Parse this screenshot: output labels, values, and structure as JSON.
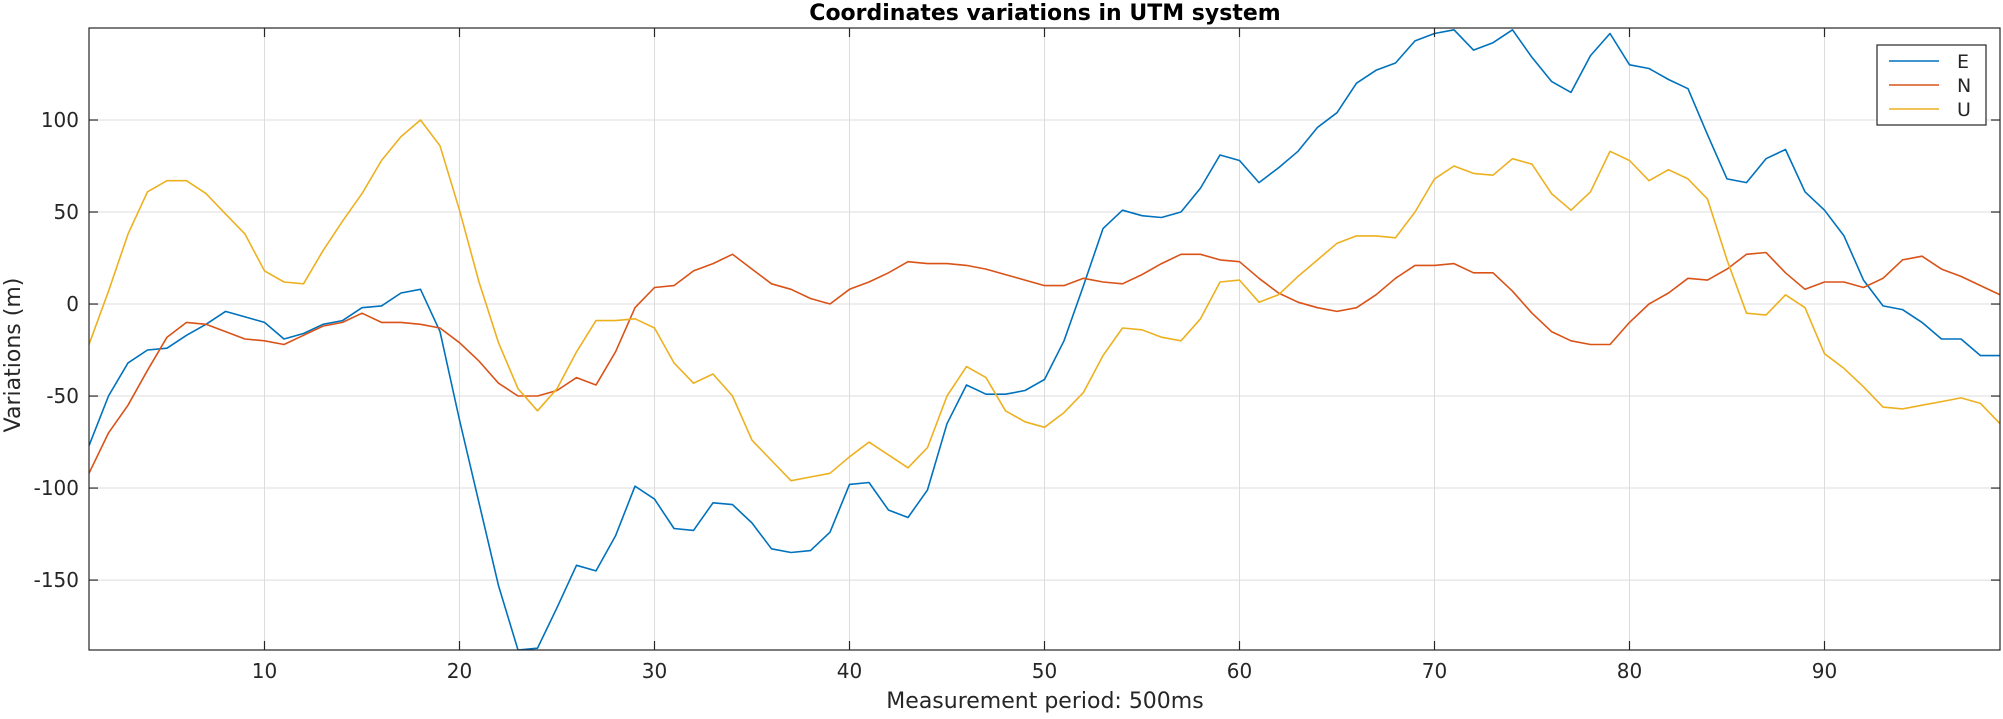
{
  "chart_data": {
    "type": "line",
    "title": "Coordinates variations in UTM system",
    "xlabel": "Measurement period: 500ms",
    "ylabel": "Variations (m)",
    "xlim": [
      1,
      99
    ],
    "ylim": [
      -188,
      150
    ],
    "xticks": [
      10,
      20,
      30,
      40,
      50,
      60,
      70,
      80,
      90
    ],
    "yticks": [
      -150,
      -100,
      -50,
      0,
      50,
      100
    ],
    "grid": true,
    "legend_position": "top-right",
    "x": [
      1,
      2,
      3,
      4,
      5,
      6,
      7,
      8,
      9,
      10,
      11,
      12,
      13,
      14,
      15,
      16,
      17,
      18,
      19,
      20,
      21,
      22,
      23,
      24,
      25,
      26,
      27,
      28,
      29,
      30,
      31,
      32,
      33,
      34,
      35,
      36,
      37,
      38,
      39,
      40,
      41,
      42,
      43,
      44,
      45,
      46,
      47,
      48,
      49,
      50,
      51,
      52,
      53,
      54,
      55,
      56,
      57,
      58,
      59,
      60,
      61,
      62,
      63,
      64,
      65,
      66,
      67,
      68,
      69,
      70,
      71,
      72,
      73,
      74,
      75,
      76,
      77,
      78,
      79,
      80,
      81,
      82,
      83,
      84,
      85,
      86,
      87,
      88,
      89,
      90,
      91,
      92,
      93,
      94,
      95,
      96,
      97,
      98,
      99
    ],
    "series": [
      {
        "name": "E",
        "color": "#0072BD",
        "values": [
          -77,
          -50,
          -32,
          -25,
          -24,
          -17,
          -11,
          -4,
          -7,
          -10,
          -19,
          -16,
          -11,
          -9,
          -2,
          -1,
          6,
          8,
          -15,
          -63,
          -108,
          -153,
          -188,
          -187,
          -165,
          -142,
          -145,
          -126,
          -99,
          -106,
          -122,
          -123,
          -108,
          -109,
          -119,
          -133,
          -135,
          -134,
          -124,
          -98,
          -97,
          -112,
          -116,
          -101,
          -65,
          -44,
          -49,
          -49,
          -47,
          -41,
          -20,
          10,
          41,
          51,
          48,
          47,
          50,
          63,
          81,
          78,
          66,
          74,
          83,
          96,
          104,
          120,
          127,
          131,
          143,
          147,
          149,
          138,
          142,
          149,
          134,
          121,
          115,
          135,
          147,
          130,
          128,
          122,
          117,
          92,
          68,
          66,
          79,
          84,
          61,
          51,
          37,
          13,
          -1,
          -3,
          -10,
          -19,
          -19,
          -28,
          -28
        ]
      },
      {
        "name": "N",
        "color": "#D95319",
        "values": [
          -92,
          -70,
          -55,
          -36,
          -18,
          -10,
          -11,
          -15,
          -19,
          -20,
          -22,
          -17,
          -12,
          -10,
          -5,
          -10,
          -10,
          -11,
          -13,
          -21,
          -31,
          -43,
          -50,
          -50,
          -47,
          -40,
          -44,
          -26,
          -2,
          9,
          10,
          18,
          22,
          27,
          19,
          11,
          8,
          3,
          0,
          8,
          12,
          17,
          23,
          22,
          22,
          21,
          19,
          16,
          13,
          10,
          10,
          14,
          12,
          11,
          16,
          22,
          27,
          27,
          24,
          23,
          14,
          6,
          1,
          -2,
          -4,
          -2,
          5,
          14,
          21,
          21,
          22,
          17,
          17,
          7,
          -5,
          -15,
          -20,
          -22,
          -22,
          -10,
          0,
          6,
          14,
          13,
          19,
          27,
          28,
          17,
          8,
          12,
          12,
          9,
          14,
          24,
          26,
          19,
          15,
          10,
          5
        ]
      },
      {
        "name": "U",
        "color": "#EDB120",
        "values": [
          -22,
          7,
          38,
          61,
          67,
          67,
          60,
          49,
          38,
          18,
          12,
          11,
          29,
          45,
          60,
          78,
          91,
          100,
          86,
          51,
          12,
          -21,
          -46,
          -58,
          -46,
          -26,
          -9,
          -9,
          -8,
          -13,
          -32,
          -43,
          -38,
          -50,
          -74,
          -85,
          -96,
          -94,
          -92,
          -83,
          -75,
          -82,
          -89,
          -78,
          -50,
          -34,
          -40,
          -58,
          -64,
          -67,
          -59,
          -48,
          -28,
          -13,
          -14,
          -18,
          -20,
          -8,
          12,
          13,
          1,
          5,
          15,
          24,
          33,
          37,
          37,
          36,
          50,
          68,
          75,
          71,
          70,
          79,
          76,
          60,
          51,
          61,
          83,
          78,
          67,
          73,
          68,
          57,
          24,
          -5,
          -6,
          5,
          -2,
          -27,
          -35,
          -45,
          -56,
          -57,
          -55,
          -53,
          -51,
          -54,
          -65
        ]
      }
    ]
  }
}
